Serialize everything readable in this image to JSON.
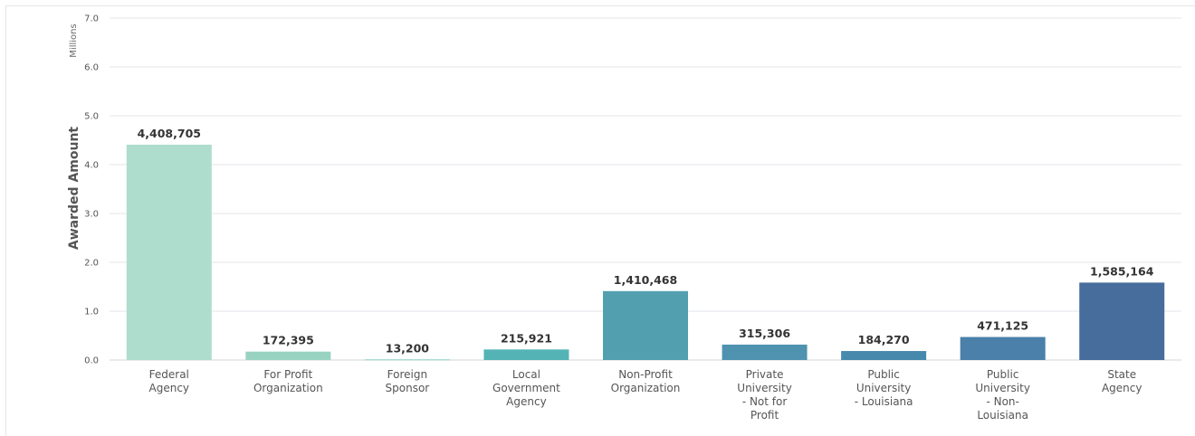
{
  "chart_data": {
    "type": "bar",
    "ylabel": "Awarded Amount",
    "units_label": "Millions",
    "ylim": [
      0,
      7000000
    ],
    "y_ticks": [
      "0.0",
      "1.0",
      "2.0",
      "3.0",
      "4.0",
      "5.0",
      "6.0",
      "7.0"
    ],
    "categories": [
      [
        "Federal",
        "Agency"
      ],
      [
        "For Profit",
        "Organization"
      ],
      [
        "Foreign",
        "Sponsor"
      ],
      [
        "Local",
        "Government",
        "Agency"
      ],
      [
        "Non-Profit",
        "Organization"
      ],
      [
        "Private",
        "University",
        "- Not for",
        "Profit"
      ],
      [
        "Public",
        "University",
        "- Louisiana"
      ],
      [
        "Public",
        "University",
        "- Non-",
        "Louisiana"
      ],
      [
        "State",
        "Agency"
      ]
    ],
    "values": [
      4408705,
      172395,
      13200,
      215921,
      1410468,
      315306,
      184270,
      471125,
      1585164
    ],
    "data_labels": [
      "4,408,705",
      "172,395",
      "13,200",
      "215,921",
      "1,410,468",
      "315,306",
      "184,270",
      "471,125",
      "1,585,164"
    ],
    "colors": [
      "#aeddcd",
      "#98d3c1",
      "#8bcfc3",
      "#53b3b5",
      "#529faf",
      "#4e92b0",
      "#4788ad",
      "#4a80a9",
      "#466d9b"
    ],
    "grid": true,
    "legend": "none"
  }
}
